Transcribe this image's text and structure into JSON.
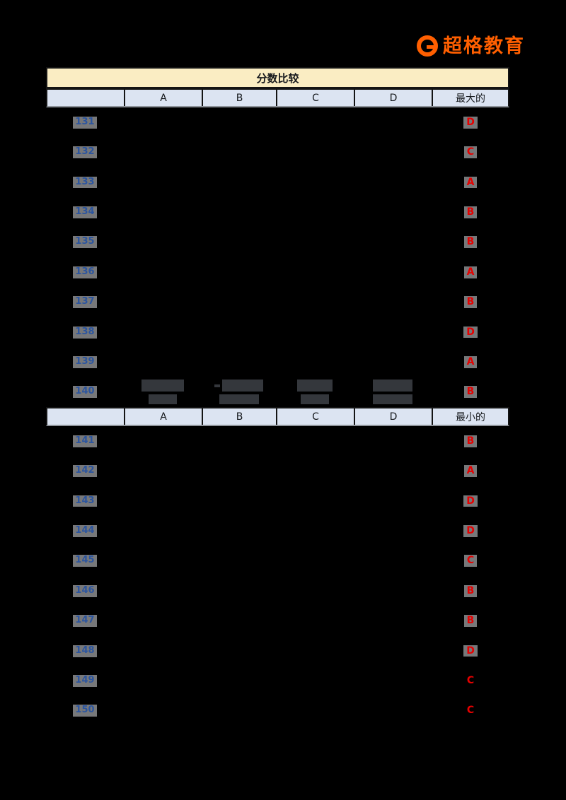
{
  "logo": {
    "mark_letter": "G",
    "name": "超格教育",
    "color": "#FF5F00"
  },
  "table": {
    "title": "分数比较",
    "columns": [
      "A",
      "B",
      "C",
      "D"
    ],
    "sections": [
      {
        "result_label": "最大的",
        "rows": [
          {
            "num": "131",
            "answer": "D"
          },
          {
            "num": "132",
            "answer": "C"
          },
          {
            "num": "133",
            "answer": "A"
          },
          {
            "num": "134",
            "answer": "B"
          },
          {
            "num": "135",
            "answer": "B"
          },
          {
            "num": "136",
            "answer": "A"
          },
          {
            "num": "137",
            "answer": "B"
          },
          {
            "num": "138",
            "answer": "D"
          },
          {
            "num": "139",
            "answer": "A"
          },
          {
            "num": "140",
            "answer": "B",
            "redacted": true
          }
        ]
      },
      {
        "result_label": "最小的",
        "rows": [
          {
            "num": "141",
            "answer": "B"
          },
          {
            "num": "142",
            "answer": "A"
          },
          {
            "num": "143",
            "answer": "D"
          },
          {
            "num": "144",
            "answer": "D"
          },
          {
            "num": "145",
            "answer": "C"
          },
          {
            "num": "146",
            "answer": "B"
          },
          {
            "num": "147",
            "answer": "B"
          },
          {
            "num": "148",
            "answer": "D"
          },
          {
            "num": "149",
            "answer": "C",
            "answer_plain": true
          },
          {
            "num": "150",
            "answer": "C",
            "answer_plain": true
          }
        ]
      }
    ],
    "redacted_fraction_boxes": {
      "numerator_widths": [
        60,
        58,
        50,
        56
      ],
      "denominator_widths": [
        40,
        56,
        40,
        56
      ],
      "minus_mark_col": 1
    },
    "colors": {
      "title_bg": "#FAEDC3",
      "header_bg": "#DCE4F2",
      "number_text": "#2B55A0",
      "answer_text": "#E60000",
      "chip_bg": "#77787A",
      "redacted_box": "#34373C",
      "border": "#141414"
    }
  }
}
